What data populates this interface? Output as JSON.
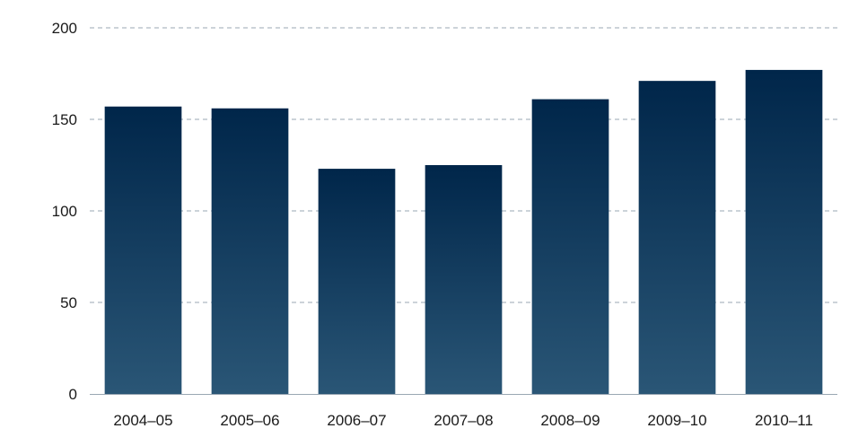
{
  "chart_data": {
    "type": "bar",
    "categories": [
      "2004–05",
      "2005–06",
      "2006–07",
      "2007–08",
      "2008–09",
      "2009–10",
      "2010–11"
    ],
    "values": [
      157,
      156,
      123,
      125,
      161,
      171,
      177
    ],
    "title": "",
    "xlabel": "",
    "ylabel": "",
    "ylim": [
      0,
      200
    ],
    "yticks": [
      0,
      50,
      100,
      150,
      200
    ],
    "grid": true,
    "bar_color_top": "#00264a",
    "bar_color_bottom": "#2a5676"
  }
}
